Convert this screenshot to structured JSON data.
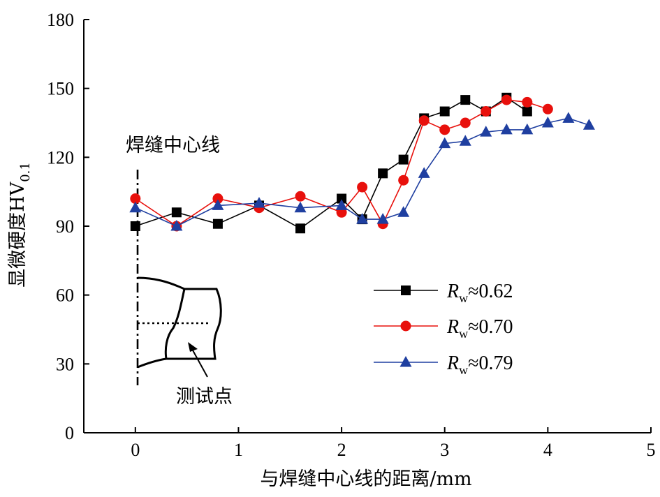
{
  "chart_data": {
    "type": "line",
    "xlabel": "与焊缝中心线的距离/mm",
    "ylabel_main": "显微硬度HV",
    "ylabel_sub": "0.1",
    "xlim": [
      -0.5,
      5
    ],
    "ylim": [
      0,
      180
    ],
    "xticks": [
      0,
      1,
      2,
      3,
      4,
      5
    ],
    "yticks": [
      0,
      30,
      60,
      90,
      120,
      150,
      180
    ],
    "grid": false,
    "legend_position": "right",
    "annotations": {
      "centerline_label": "焊缝中心线",
      "test_point_label": "测试点"
    },
    "series": [
      {
        "name_symbol": "R",
        "name_sub": "w",
        "name_value": "≈0.62",
        "color": "#000000",
        "marker": "square",
        "x": [
          0,
          0.4,
          0.8,
          1.2,
          1.6,
          2.0,
          2.2,
          2.4,
          2.6,
          2.8,
          3.0,
          3.2,
          3.4,
          3.6,
          3.8
        ],
        "y": [
          90,
          96,
          91,
          99,
          89,
          102,
          93,
          113,
          119,
          137,
          140,
          145,
          140,
          146,
          140
        ]
      },
      {
        "name_symbol": "R",
        "name_sub": "w",
        "name_value": "≈0.70",
        "color": "#e8100c",
        "marker": "circle",
        "x": [
          0,
          0.4,
          0.8,
          1.2,
          1.6,
          2.0,
          2.2,
          2.4,
          2.6,
          2.8,
          3.0,
          3.2,
          3.4,
          3.6,
          3.8,
          4.0
        ],
        "y": [
          102,
          90,
          102,
          98,
          103,
          96,
          107,
          91,
          110,
          136,
          132,
          135,
          140,
          145,
          144,
          141
        ]
      },
      {
        "name_symbol": "R",
        "name_sub": "w",
        "name_value": "≈0.79",
        "color": "#1f3fa0",
        "marker": "triangle",
        "x": [
          0,
          0.4,
          0.8,
          1.2,
          1.6,
          2.0,
          2.2,
          2.4,
          2.6,
          2.8,
          3.0,
          3.2,
          3.4,
          3.6,
          3.8,
          4.0,
          4.2,
          4.4
        ],
        "y": [
          98,
          90,
          99,
          100,
          98,
          99,
          93,
          93,
          96,
          113,
          126,
          127,
          131,
          132,
          132,
          135,
          137,
          134
        ]
      }
    ]
  }
}
